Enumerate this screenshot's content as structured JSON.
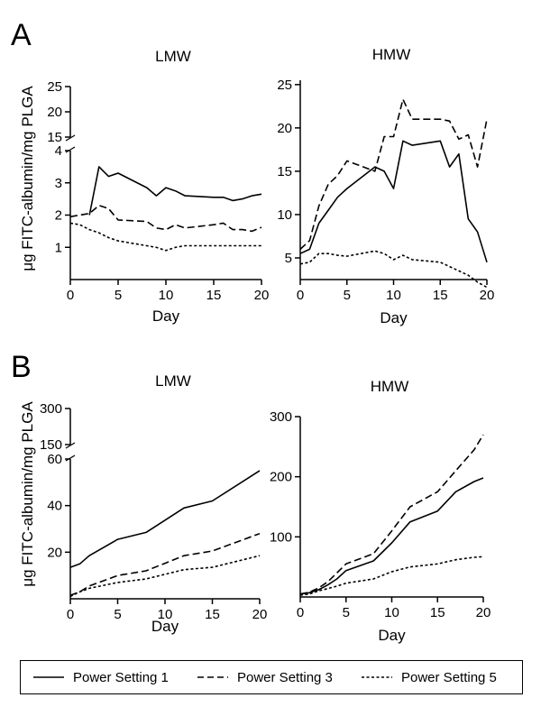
{
  "panel_labels": {
    "a": "A",
    "b": "B"
  },
  "legend": [
    {
      "label": "Power Setting 1",
      "dash": "solid"
    },
    {
      "label": "Power Setting 3",
      "dash": "dashed"
    },
    {
      "label": "Power Setting 5",
      "dash": "dotted"
    }
  ],
  "chart_data": [
    {
      "id": "A-LMW",
      "type": "line",
      "title": "LMW",
      "xlabel": "Day",
      "ylabel": "μg FITC-albumin/mg PLGA",
      "xlim": [
        0,
        20
      ],
      "xticks": [
        "0",
        "5",
        "10",
        "15",
        "20"
      ],
      "ylim_lower": [
        0,
        4
      ],
      "yticks_lower": [
        "1",
        "2",
        "3",
        "4"
      ],
      "ylim_upper": [
        15,
        25
      ],
      "yticks_upper": [
        "15",
        "20",
        "25"
      ],
      "series": [
        {
          "name": "Power Setting 1",
          "x": [
            2,
            3,
            4,
            5,
            8,
            9,
            10,
            11,
            12,
            15,
            16,
            17,
            18,
            19,
            20
          ],
          "y": [
            2.0,
            3.5,
            3.2,
            3.3,
            2.85,
            2.6,
            2.85,
            2.75,
            2.6,
            2.55,
            2.55,
            2.45,
            2.5,
            2.6,
            2.65
          ]
        },
        {
          "name": "Power Setting 3",
          "x": [
            0,
            1,
            2,
            3,
            4,
            5,
            8,
            9,
            10,
            11,
            12,
            15,
            16,
            17,
            18,
            19,
            20
          ],
          "y": [
            1.95,
            2.0,
            2.05,
            2.3,
            2.2,
            1.85,
            1.8,
            1.6,
            1.55,
            1.7,
            1.6,
            1.7,
            1.75,
            1.55,
            1.55,
            1.5,
            1.62
          ]
        },
        {
          "name": "Power Setting 5",
          "x": [
            0,
            1,
            2,
            3,
            4,
            5,
            8,
            9,
            10,
            11,
            12,
            15,
            16,
            17,
            18,
            19,
            20
          ],
          "y": [
            1.75,
            1.7,
            1.55,
            1.45,
            1.3,
            1.2,
            1.05,
            1.0,
            0.9,
            1.0,
            1.05,
            1.05,
            1.05,
            1.05,
            1.05,
            1.05,
            1.05
          ]
        }
      ]
    },
    {
      "id": "A-HMW",
      "type": "line",
      "title": "HMW",
      "xlabel": "Day",
      "xlim": [
        0,
        20
      ],
      "xticks": [
        "0",
        "5",
        "10",
        "15",
        "20"
      ],
      "ylim": [
        2.5,
        25.5
      ],
      "yticks": [
        "5",
        "10",
        "15",
        "20",
        "25"
      ],
      "series": [
        {
          "name": "Power Setting 1",
          "x": [
            0,
            1,
            2,
            3,
            4,
            5,
            8,
            9,
            10,
            11,
            12,
            15,
            16,
            17,
            18,
            19,
            20
          ],
          "y": [
            5.5,
            6,
            9,
            10.5,
            12,
            13,
            15.5,
            15,
            13,
            18.5,
            18,
            18.5,
            15.5,
            17,
            9.5,
            8,
            4.5
          ]
        },
        {
          "name": "Power Setting 3",
          "x": [
            0,
            1,
            2,
            3,
            4,
            5,
            8,
            9,
            10,
            11,
            12,
            15,
            16,
            17,
            18,
            19,
            20
          ],
          "y": [
            6,
            7,
            11,
            13.5,
            14.5,
            16.2,
            15,
            19,
            19,
            23.3,
            21,
            21,
            20.8,
            18.7,
            19.2,
            15.5,
            21
          ]
        },
        {
          "name": "Power Setting 5",
          "x": [
            0,
            1,
            2,
            3,
            4,
            5,
            8,
            9,
            10,
            11,
            12,
            15,
            16,
            17,
            18,
            19,
            20
          ],
          "y": [
            4.3,
            4.5,
            5.5,
            5.5,
            5.3,
            5.2,
            5.8,
            5.5,
            4.8,
            5.3,
            4.8,
            4.5,
            4,
            3.5,
            3,
            2.2,
            1.6
          ]
        }
      ]
    },
    {
      "id": "B-LMW",
      "type": "line",
      "title": "LMW",
      "xlabel": "Day",
      "ylabel": "μg FITC-albumin/mg PLGA",
      "xlim": [
        0,
        20
      ],
      "xticks": [
        "0",
        "5",
        "10",
        "15",
        "20"
      ],
      "ylim_lower": [
        0,
        60
      ],
      "yticks_lower": [
        "20",
        "40",
        "60"
      ],
      "ylim_upper": [
        150,
        300
      ],
      "yticks_upper": [
        "150",
        "300"
      ],
      "series": [
        {
          "name": "Power Setting 1",
          "x": [
            0,
            1,
            2,
            5,
            8,
            12,
            15,
            20
          ],
          "y": [
            13.5,
            15,
            18.5,
            25.5,
            28.5,
            39,
            42,
            55
          ]
        },
        {
          "name": "Power Setting 3",
          "x": [
            0,
            1,
            2,
            5,
            8,
            12,
            15,
            20
          ],
          "y": [
            1.5,
            3,
            5.5,
            10,
            12,
            18.5,
            20.5,
            28
          ]
        },
        {
          "name": "Power Setting 5",
          "x": [
            0,
            1,
            2,
            5,
            8,
            12,
            15,
            20
          ],
          "y": [
            1,
            3,
            4.5,
            7,
            8.5,
            12.5,
            13.5,
            18.5
          ]
        }
      ]
    },
    {
      "id": "B-HMW",
      "type": "line",
      "title": "HMW",
      "xlabel": "Day",
      "xlim": [
        0,
        20
      ],
      "xticks": [
        "0",
        "5",
        "10",
        "15",
        "20"
      ],
      "ylim": [
        0,
        300
      ],
      "yticks": [
        "100",
        "200",
        "300"
      ],
      "series": [
        {
          "name": "Power Setting 1",
          "x": [
            0,
            1,
            2,
            3,
            4,
            5,
            8,
            10,
            12,
            15,
            17,
            19,
            20
          ],
          "y": [
            5,
            7,
            12,
            20,
            30,
            44,
            60,
            90,
            125,
            143,
            175,
            192,
            198
          ]
        },
        {
          "name": "Power Setting 3",
          "x": [
            0,
            1,
            2,
            3,
            4,
            5,
            8,
            10,
            12,
            15,
            17,
            19,
            20
          ],
          "y": [
            5,
            8,
            15,
            25,
            40,
            55,
            72,
            110,
            150,
            175,
            210,
            245,
            270
          ]
        },
        {
          "name": "Power Setting 5",
          "x": [
            0,
            1,
            2,
            3,
            4,
            5,
            8,
            10,
            12,
            15,
            17,
            19,
            20
          ],
          "y": [
            3,
            5,
            10,
            14,
            18,
            23,
            30,
            42,
            50,
            55,
            62,
            66,
            67
          ]
        }
      ]
    }
  ]
}
